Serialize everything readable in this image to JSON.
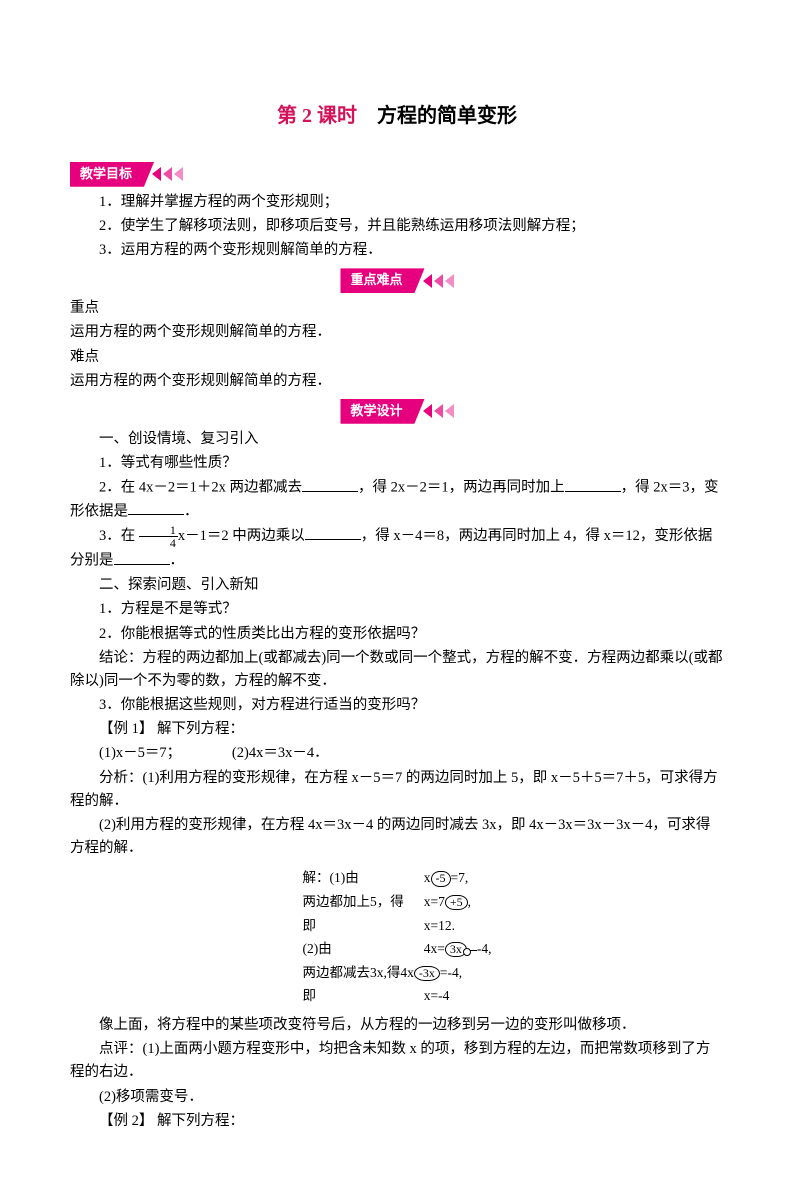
{
  "title": {
    "red": "第 2 课时",
    "rest": "　方程的简单变形"
  },
  "banners": {
    "objectives": "教学目标",
    "keypoints": "重点难点",
    "design": "教学设计"
  },
  "objectives": [
    "1．理解并掌握方程的两个变形规则；",
    "2．使学生了解移项法则，即移项后变号，并且能熟练运用移项法则解方程；",
    "3．运用方程的两个变形规则解简单的方程．"
  ],
  "key": {
    "heading_zd": "重点",
    "zd": "运用方程的两个变形规则解简单的方程．",
    "heading_nd": "难点",
    "nd": "运用方程的两个变形规则解简单的方程．"
  },
  "sec1": {
    "h": "一、创设情境、复习引入",
    "q1": "1．等式有哪些性质？",
    "q2a": "2．在 4x－2＝1＋2x 两边都减去",
    "q2b": "，得 2x－2＝1，两边再同时加上",
    "q2c": "，得 2x＝3，变形依据是",
    "q2d": "．",
    "q3a": "3．在 ",
    "q3frac_num": "1",
    "q3frac_den": "4",
    "q3b": "x－1＝2 中两边乘以",
    "q3c": "，得 x－4＝8，两边再同时加上 4，得 x＝12，变形依据分别是",
    "q3d": "．"
  },
  "sec2": {
    "h": "二、探索问题、引入新知",
    "l1": "1．方程是不是等式？",
    "l2": "2．你能根据等式的性质类比出方程的变形依据吗？",
    "concl": "结论：方程的两边都加上(或都减去)同一个数或同一个整式，方程的解不变．方程两边都乘以(或都除以)同一个不为零的数，方程的解不变．",
    "l3": "3．你能根据这些规则，对方程进行适当的变形吗？",
    "ex1": "【例 1】 解下列方程：",
    "ex1items": "(1)x－5＝7；　　　　(2)4x＝3x－4．",
    "ana1": "分析：(1)利用方程的变形规律，在方程 x－5＝7 的两边同时加上 5，即 x－5＋5＝7＋5，可求得方程的解．",
    "ana2": "(2)利用方程的变形规律，在方程 4x＝3x－4 的两边同时减去 3x，即 4x－3x＝3x－3x－4，可求得方程的解．"
  },
  "solution": {
    "r1l": "解：(1)由",
    "r1r_pre": "x",
    "r1r_ov": "-5",
    "r1r_post": "=7,",
    "r2l": "两边都加上5，得",
    "r2r_pre": "x=7",
    "r2r_ov": "+5",
    "r2r_post": ",",
    "r3l": "即",
    "r3r": "x=12.",
    "r4l": "(2)由",
    "r4r_pre": "4x=",
    "r4r_ov": "3x",
    "r4r_post": "-4,",
    "r5l": "两边都减去3x,得4x",
    "r5l_ov": "-3x",
    "r5l_post": "=-4,",
    "r6l": "即",
    "r6r": "x=-4"
  },
  "after": {
    "p1": "像上面，将方程中的某些项改变符号后，从方程的一边移到另一边的变形叫做移项．",
    "p2": "点评：(1)上面两小题方程变形中，均把含未知数 x 的项，移到方程的左边，而把常数项移到了方程的右边．",
    "p3": "(2)移项需变号．",
    "p4": "【例 2】 解下列方程："
  },
  "colors": {
    "magenta": "#e6007e",
    "title_red": "#d4145a",
    "text": "#000000",
    "bg": "#ffffff"
  }
}
